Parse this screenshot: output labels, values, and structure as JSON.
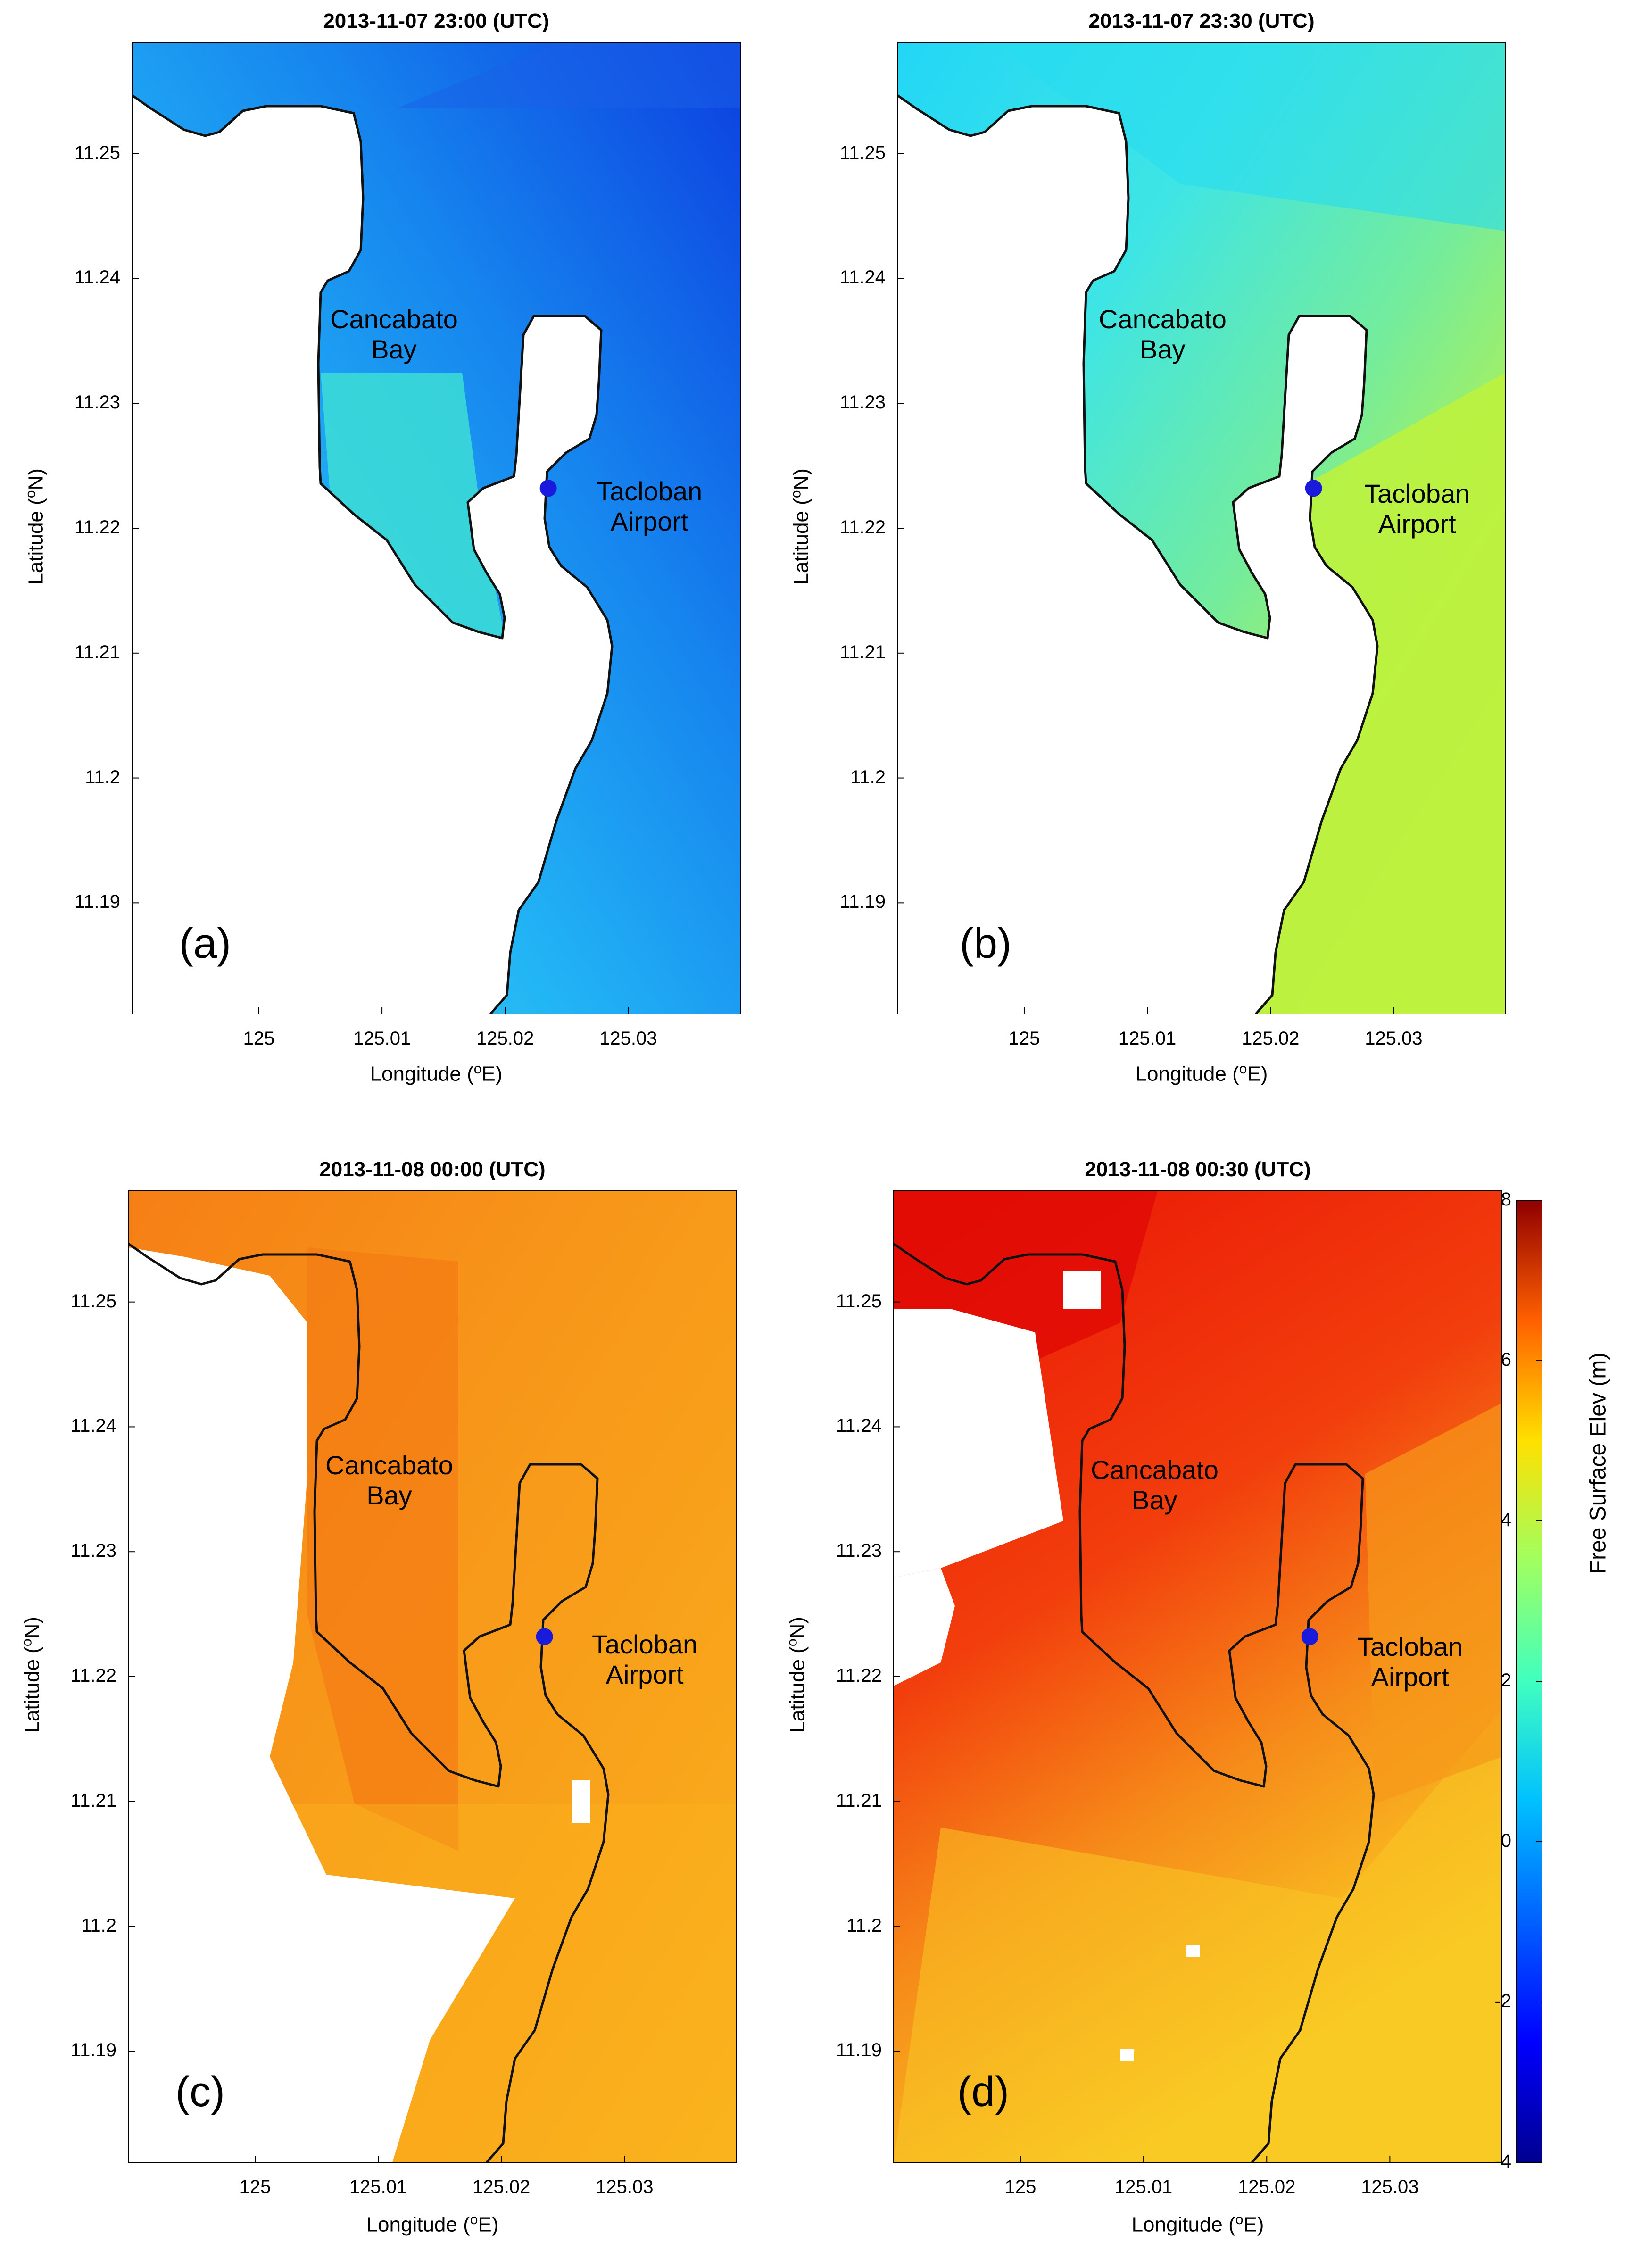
{
  "figure": {
    "xlabel_prefix": "Longitude (",
    "xlabel_sup": "o",
    "xlabel_suffix": "E)",
    "ylabel_prefix": "Latitude (",
    "ylabel_sup": "o",
    "ylabel_suffix": "N)",
    "x_ticks": [
      "125",
      "125.01",
      "125.02",
      "125.03"
    ],
    "y_ticks": [
      "11.25",
      "11.24",
      "11.23",
      "11.22",
      "11.21",
      "11.2",
      "11.19"
    ],
    "place_bay_line1": "Cancabato",
    "place_bay_line2": "Bay",
    "place_airport_line1": "Tacloban",
    "place_airport_line2": "Airport",
    "marker_color": "#1a1adc"
  },
  "panels": [
    {
      "title": "2013-11-07 23:00 (UTC)",
      "letter": "(a)"
    },
    {
      "title": "2013-11-07 23:30 (UTC)",
      "letter": "(b)"
    },
    {
      "title": "2013-11-08 00:00 (UTC)",
      "letter": "(c)"
    },
    {
      "title": "2013-11-08 00:30 (UTC)",
      "letter": "(d)"
    }
  ],
  "colorbar": {
    "label": "Free Surface Elev (m)",
    "ticks": [
      "8",
      "6",
      "4",
      "2",
      "0",
      "-2",
      "-4"
    ],
    "range": [
      -4,
      8
    ],
    "colormap": "jet"
  },
  "chart_data": {
    "type": "heatmap",
    "xlabel": "Longitude (oE)",
    "ylabel": "Latitude (oN)",
    "xlim": [
      124.9897,
      125.0391
    ],
    "ylim": [
      11.1811,
      11.2589
    ],
    "x_ticks": [
      125,
      125.01,
      125.02,
      125.03
    ],
    "y_ticks": [
      11.19,
      11.2,
      11.21,
      11.22,
      11.23,
      11.24,
      11.25
    ],
    "color_range": [
      -4,
      8
    ],
    "color_label": "Free Surface Elev (m)",
    "marker": {
      "lon": 125.0235,
      "lat": 11.2232,
      "label": "Tacloban Airport"
    },
    "panels": [
      {
        "title": "2013-11-07 23:00 (UTC)",
        "approx_elevation_range_m": [
          -2.5,
          1
        ]
      },
      {
        "title": "2013-11-07 23:30 (UTC)",
        "approx_elevation_range_m": [
          0,
          3.5
        ]
      },
      {
        "title": "2013-11-08 00:00 (UTC)",
        "approx_elevation_range_m": [
          4.5,
          6
        ]
      },
      {
        "title": "2013-11-08 00:30 (UTC)",
        "approx_elevation_range_m": [
          4,
          7
        ]
      }
    ]
  }
}
